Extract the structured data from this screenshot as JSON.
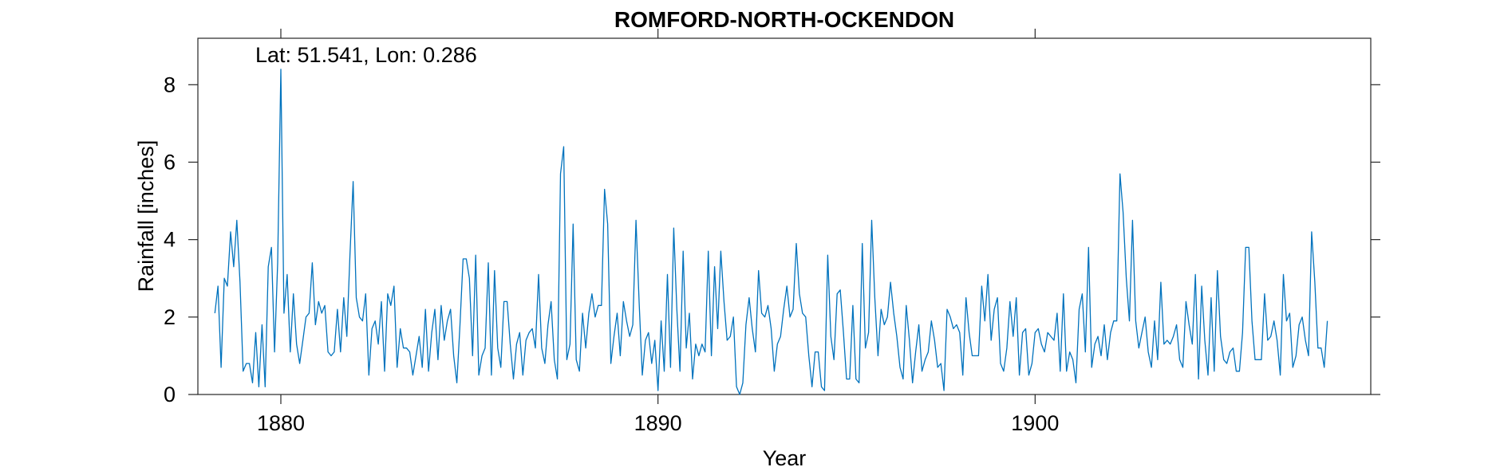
{
  "chart_data": {
    "type": "line",
    "title": "ROMFORD-NORTH-OCKENDON",
    "annotation": "Lat: 51.541, Lon: 0.286",
    "xlabel": "Year",
    "ylabel": "Rainfall [inches]",
    "xlim": [
      1877.8,
      1908.9
    ],
    "ylim": [
      0,
      9.2
    ],
    "xticks": [
      1880,
      1890,
      1900
    ],
    "yticks": [
      0,
      2,
      4,
      6,
      8
    ],
    "grid": false,
    "line_color": "#0072BD",
    "series": [
      {
        "x_start": 1878.25,
        "x_step_months": 1,
        "values": [
          2.1,
          2.8,
          0.7,
          3.0,
          2.8,
          4.2,
          3.3,
          4.5,
          2.9,
          0.6,
          0.8,
          0.8,
          0.3,
          1.6,
          0.2,
          1.8,
          0.2,
          3.3,
          3.8,
          1.1,
          3.4,
          8.4,
          2.1,
          3.1,
          1.1,
          2.6,
          1.3,
          0.8,
          1.4,
          2.0,
          2.1,
          3.4,
          1.8,
          2.4,
          2.1,
          2.3,
          1.1,
          1.0,
          1.1,
          2.2,
          1.1,
          2.5,
          1.5,
          3.6,
          5.5,
          2.5,
          2.0,
          1.9,
          2.6,
          0.5,
          1.7,
          1.9,
          1.3,
          2.4,
          0.6,
          2.6,
          2.3,
          2.8,
          0.7,
          1.7,
          1.2,
          1.2,
          1.1,
          0.5,
          1.0,
          1.5,
          0.7,
          2.2,
          0.6,
          1.6,
          2.2,
          0.9,
          2.3,
          1.4,
          1.9,
          2.2,
          1.0,
          0.3,
          1.8,
          3.5,
          3.5,
          3.0,
          1.0,
          3.6,
          0.5,
          1.0,
          1.2,
          3.4,
          0.5,
          3.2,
          1.2,
          0.7,
          2.4,
          2.4,
          1.3,
          0.4,
          1.3,
          1.6,
          0.5,
          1.4,
          1.6,
          1.7,
          1.2,
          3.1,
          1.2,
          0.8,
          1.8,
          2.4,
          0.9,
          0.4,
          5.7,
          6.4,
          0.9,
          1.3,
          4.4,
          0.9,
          0.6,
          2.1,
          1.2,
          2.1,
          2.6,
          2.0,
          2.3,
          2.3,
          5.3,
          4.4,
          0.8,
          1.5,
          2.1,
          1.0,
          2.4,
          1.9,
          1.5,
          1.8,
          4.5,
          2.4,
          0.5,
          1.4,
          1.6,
          0.8,
          1.4,
          0.1,
          1.9,
          0.6,
          3.1,
          0.7,
          4.3,
          2.2,
          0.6,
          3.7,
          1.2,
          2.1,
          0.4,
          1.3,
          1.0,
          1.3,
          1.1,
          3.7,
          1.0,
          3.3,
          1.7,
          3.7,
          2.4,
          1.4,
          1.5,
          2.0,
          0.2,
          0.0,
          0.3,
          1.8,
          2.5,
          1.7,
          1.1,
          3.2,
          2.1,
          2.0,
          2.3,
          1.7,
          0.6,
          1.3,
          1.5,
          2.2,
          2.8,
          2.0,
          2.2,
          3.9,
          2.6,
          2.1,
          2.0,
          1.0,
          0.2,
          1.1,
          1.1,
          0.2,
          0.1,
          3.6,
          1.5,
          0.9,
          2.6,
          2.7,
          1.6,
          0.4,
          0.4,
          2.3,
          0.4,
          0.3,
          3.9,
          1.2,
          1.6,
          4.5,
          2.5,
          1.0,
          2.2,
          1.8,
          2.0,
          2.9,
          2.1,
          1.5,
          0.7,
          0.4,
          2.3,
          1.4,
          0.3,
          1.1,
          1.8,
          0.6,
          0.9,
          1.1,
          1.9,
          1.4,
          0.7,
          0.8,
          0.1,
          2.2,
          2.0,
          1.7,
          1.8,
          1.6,
          0.5,
          2.5,
          1.6,
          1.0,
          1.0,
          1.0,
          2.8,
          1.9,
          3.1,
          1.4,
          2.2,
          2.5,
          0.8,
          0.6,
          1.2,
          2.4,
          1.5,
          2.5,
          0.5,
          1.6,
          1.7,
          0.5,
          0.8,
          1.6,
          1.7,
          1.3,
          1.1,
          1.6,
          1.5,
          1.4,
          2.1,
          0.6,
          2.6,
          0.6,
          1.1,
          0.9,
          0.3,
          2.2,
          2.6,
          1.1,
          3.8,
          0.7,
          1.3,
          1.5,
          1.0,
          1.8,
          0.9,
          1.6,
          1.9,
          1.9,
          5.7,
          4.7,
          3.0,
          1.9,
          4.5,
          1.9,
          1.2,
          1.6,
          2.0,
          1.1,
          0.7,
          1.9,
          0.9,
          2.9,
          1.3,
          1.4,
          1.3,
          1.5,
          1.8,
          0.9,
          0.7,
          2.4,
          1.8,
          1.3,
          3.1,
          0.4,
          2.8,
          1.4,
          0.5,
          2.5,
          0.6,
          3.2,
          1.5,
          0.9,
          0.8,
          1.1,
          1.2,
          0.6,
          0.6,
          1.6,
          3.8,
          3.8,
          1.9,
          0.9,
          0.9,
          0.9,
          2.6,
          1.4,
          1.5,
          1.9,
          1.4,
          0.5,
          3.1,
          1.9,
          2.1,
          0.7,
          1.0,
          1.8,
          2.0,
          1.4,
          1.0,
          4.2,
          2.9,
          1.2,
          1.2,
          0.7,
          1.9
        ]
      }
    ]
  }
}
